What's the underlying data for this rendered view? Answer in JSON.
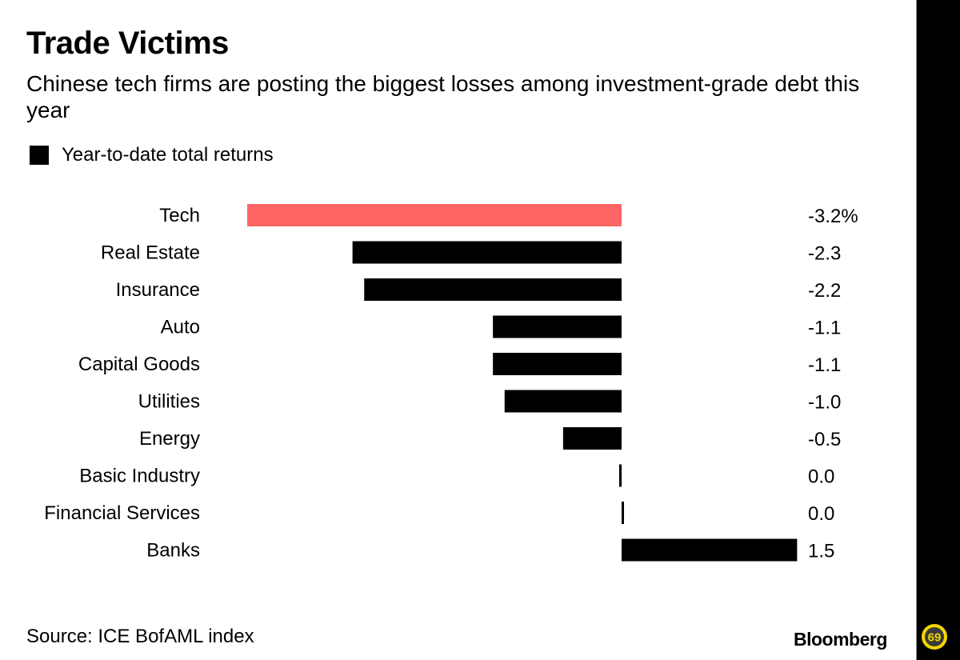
{
  "header": {
    "title": "Trade Victims",
    "subtitle": "Chinese tech firms are posting the biggest losses among investment-grade debt this year"
  },
  "legend": {
    "label": "Year-to-date total returns",
    "color": "#000000"
  },
  "footer": {
    "source": "Source: ICE BofAML index",
    "brand": "Bloomberg"
  },
  "colors": {
    "highlight": "#ff6666",
    "default": "#000000"
  },
  "chart_data": {
    "type": "bar",
    "orientation": "horizontal",
    "title": "Trade Victims",
    "subtitle": "Chinese tech firms are posting the biggest losses among investment-grade debt this year",
    "xlabel": "",
    "ylabel": "",
    "categories": [
      "Tech",
      "Real Estate",
      "Insurance",
      "Auto",
      "Capital Goods",
      "Utilities",
      "Energy",
      "Basic Industry",
      "Financial Services",
      "Banks"
    ],
    "series": [
      {
        "name": "Year-to-date total returns",
        "values": [
          -3.2,
          -2.3,
          -2.2,
          -1.1,
          -1.1,
          -1.0,
          -0.5,
          -0.02,
          0.02,
          1.5
        ]
      }
    ],
    "value_labels": [
      "-3.2%",
      "-2.3",
      "-2.2",
      "-1.1",
      "-1.1",
      "-1.0",
      "-0.5",
      "0.0",
      "0.0",
      "1.5"
    ],
    "highlight_category": "Tech",
    "xlim": [
      -3.2,
      1.5
    ],
    "grid": false,
    "legend_position": "top-left"
  }
}
